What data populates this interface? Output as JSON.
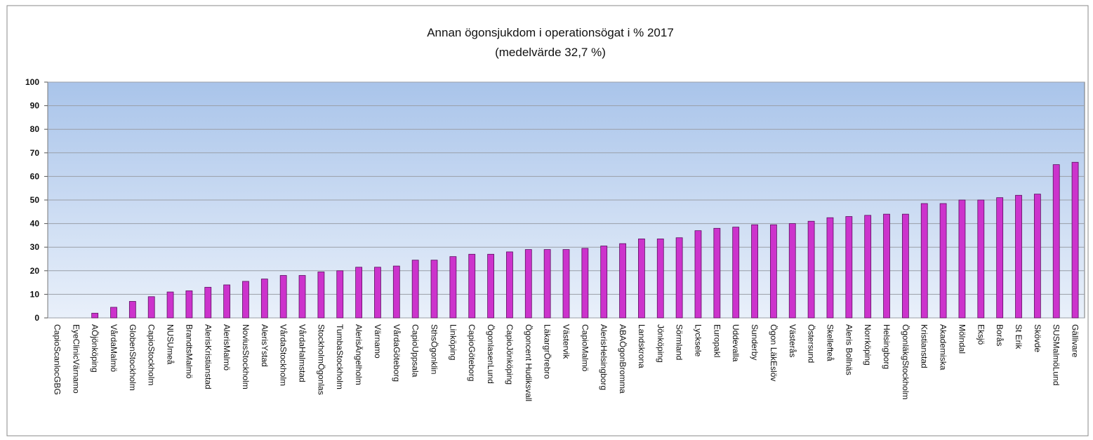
{
  "chart_data": {
    "type": "bar",
    "title": "Annan ögonsjukdom i operationsögat i % 2017",
    "subtitle": "(medelvärde 32,7  %)",
    "categories": [
      "CapioScanlocGBG",
      "EyeClinicVärnamo",
      "AÖjönköping",
      "VårdaMalmö",
      "GlobenStockholm",
      "CapioStockholm",
      "NUSUmeå",
      "BrandtsMalmö",
      "AlerisKristianstad",
      "AlerisMalmö",
      "NoviusStockholm",
      "AlerisYstad",
      "VårdaStockholm",
      "VårdaHalmstad",
      "StockholmÖgonlas",
      "TumbaStockholm",
      "AlerisÄngelholm",
      "Värnamo",
      "VårdaGöteborg",
      "CapioUppsala",
      "SthsÖgonklin",
      "Linköping",
      "CapioGöteborg",
      "ÖgonlasenLund",
      "CapioJönköping",
      "Ögoncent Hudiksvall",
      "LäkargrÖrebro",
      "Västervik",
      "CapioMalmö",
      "AlerisHelsingborg",
      "ABAÖgonBromma",
      "Landskrona",
      "Jönköping",
      "Sörmland",
      "Lycksele",
      "Europakl",
      "Uddevalla",
      "Sunderby",
      "Ögon LäkEslöv",
      "Västerås",
      "Östersund",
      "Skellefteå",
      "Aleris Bollnäs",
      "Norrköping",
      "Helsingborg",
      "ÖgonläkgStockholm",
      "Kristianstad",
      "Akademiska",
      "Mölndal",
      "Eksjö",
      "Borås",
      "St Erik",
      "Skövde",
      "SUSMalmöLund",
      "Gällivare"
    ],
    "values": [
      0,
      0,
      2,
      4.5,
      7,
      9,
      11,
      11.5,
      13,
      14,
      15.5,
      16.5,
      18,
      18,
      19.5,
      20,
      21.5,
      21.5,
      22,
      24.5,
      24.5,
      26,
      27,
      27,
      28,
      29,
      29,
      29,
      29.5,
      30.5,
      31.5,
      33.5,
      33.5,
      34,
      37,
      38,
      38.5,
      39.5,
      39.5,
      40,
      41,
      42.5,
      43,
      43.5,
      44,
      44,
      48.5,
      48.5,
      50,
      50,
      51,
      52,
      52.5,
      65,
      66
    ],
    "color": "#cc33cc",
    "ylim": [
      0,
      100
    ],
    "yticks": [
      0,
      10,
      20,
      30,
      40,
      50,
      60,
      70,
      80,
      90,
      100
    ],
    "grid": true
  }
}
